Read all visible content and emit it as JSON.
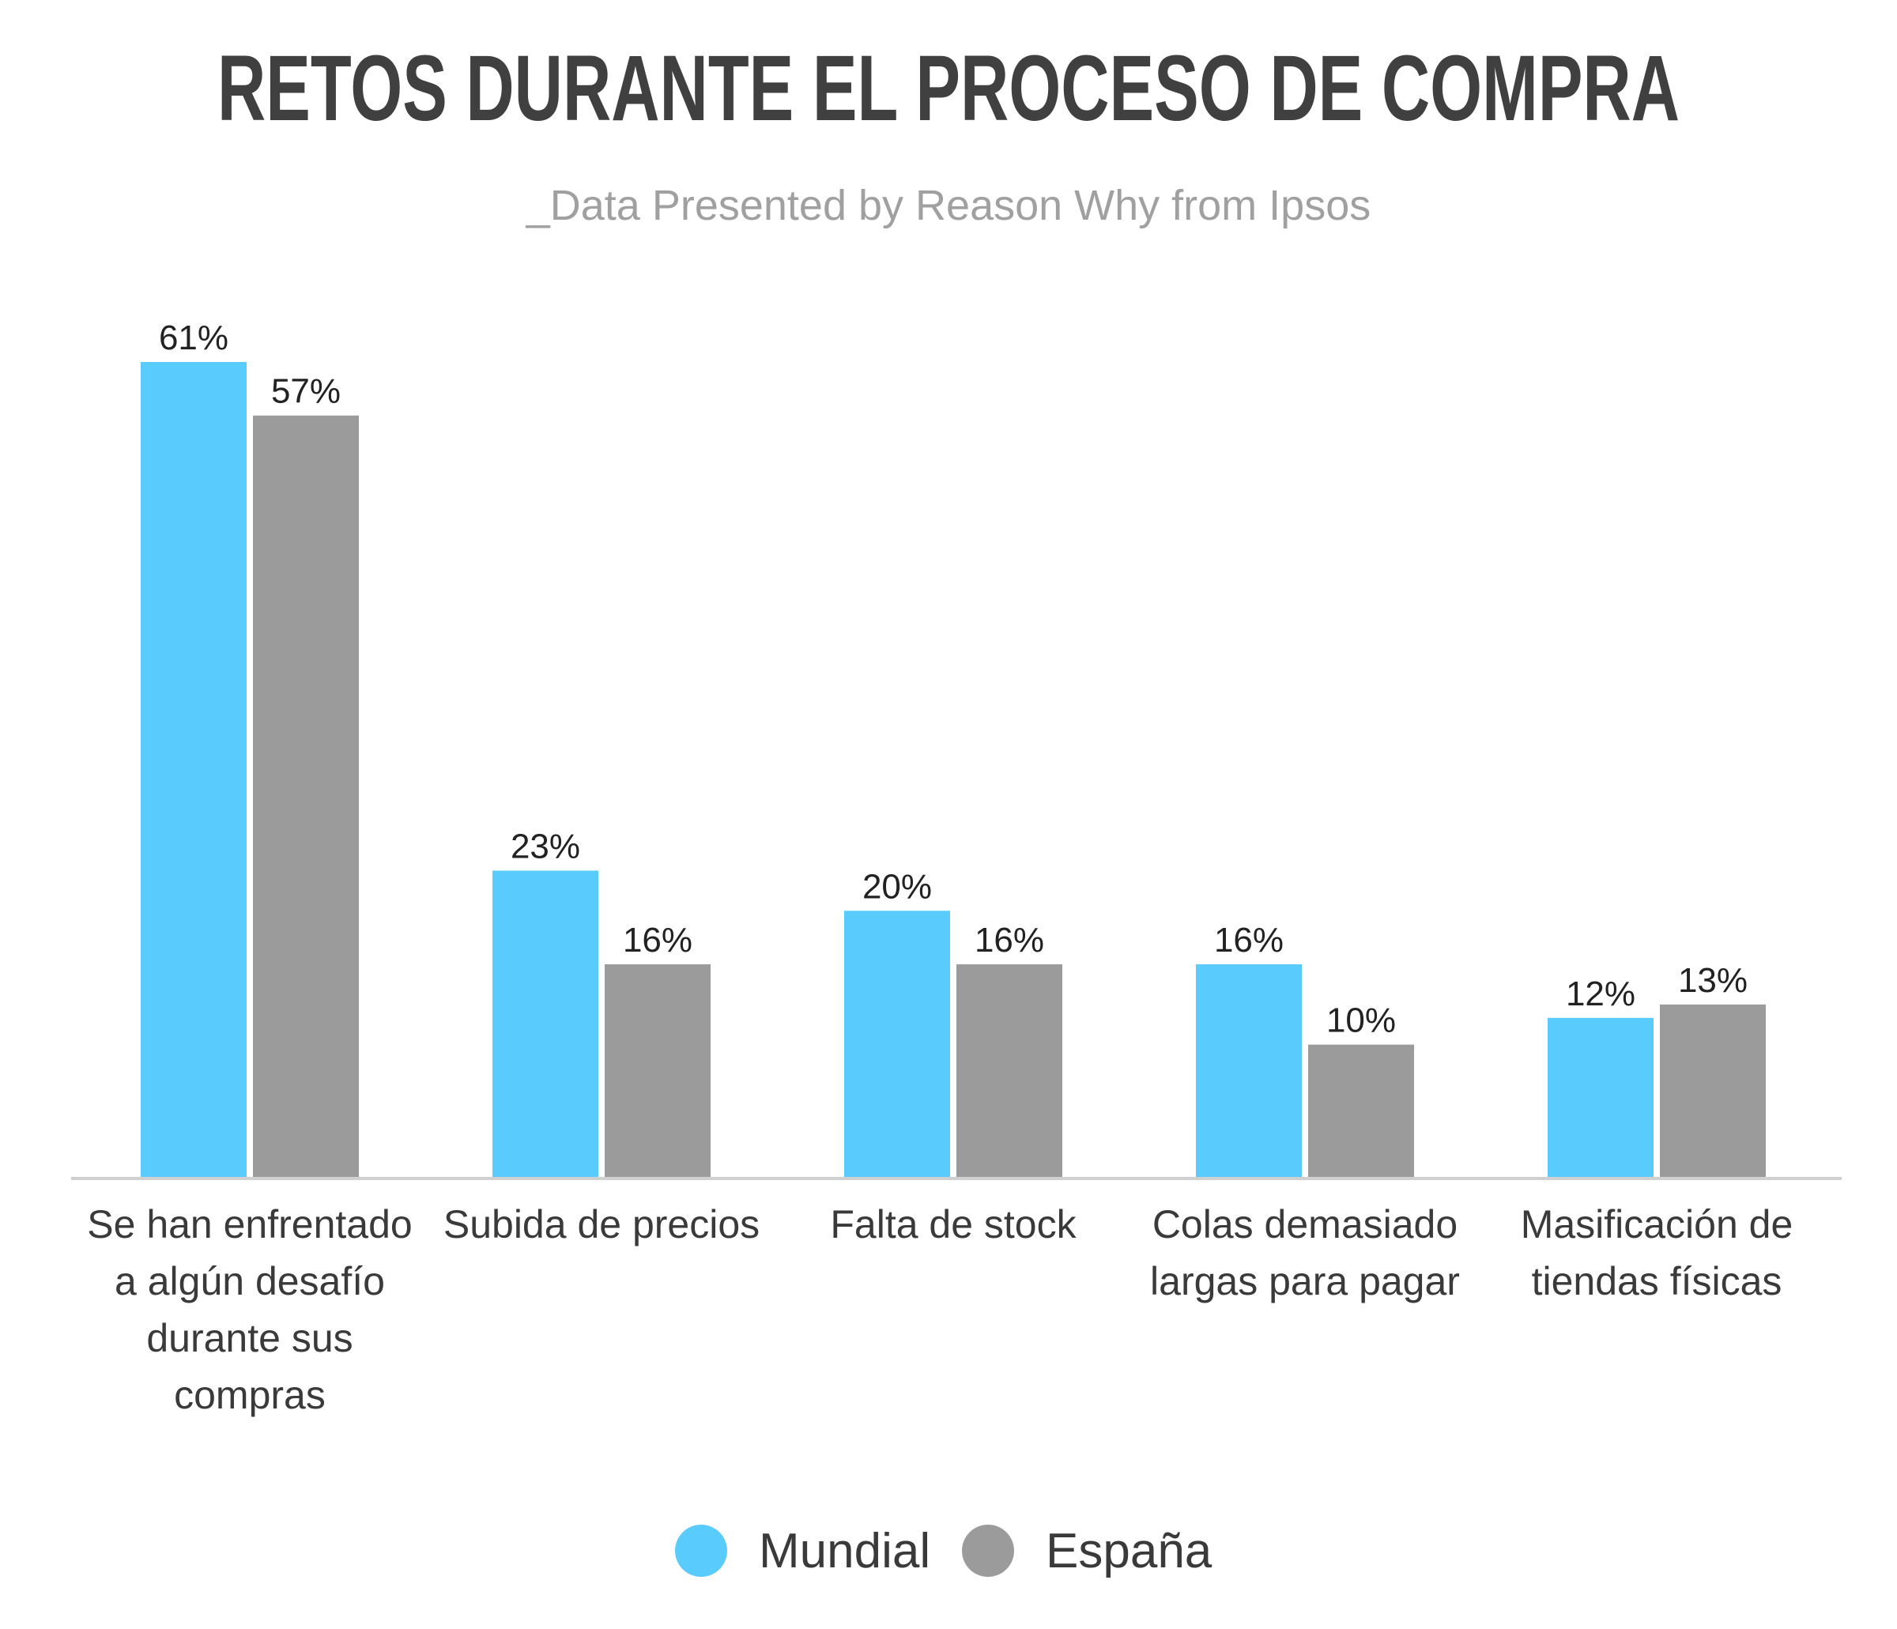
{
  "colors": {
    "mundial": "#5acbfd",
    "espana": "#9b9b9b",
    "title": "#404040",
    "subtitle": "#a0a0a0",
    "text": "#3a3a3a",
    "axis": "#d0d0d0"
  },
  "chart_data": {
    "type": "bar",
    "title": "RETOS DURANTE EL PROCESO DE COMPRA",
    "subtitle": "_Data Presented by Reason Why from Ipsos",
    "categories": [
      [
        "Se han enfrentado",
        "a algún desafío",
        "durante sus",
        "compras"
      ],
      [
        "Subida de precios"
      ],
      [
        "Falta de stock"
      ],
      [
        "Colas demasiado",
        "largas para pagar"
      ],
      [
        "Masificación de",
        "tiendas físicas"
      ]
    ],
    "series": [
      {
        "name": "Mundial",
        "values": [
          61,
          23,
          20,
          16,
          12
        ],
        "labels": [
          "61%",
          "23%",
          "20%",
          "16%",
          "12%"
        ]
      },
      {
        "name": "España",
        "values": [
          57,
          16,
          16,
          10,
          13
        ],
        "labels": [
          "57%",
          "16%",
          "16%",
          "10%",
          "13%"
        ]
      }
    ],
    "ylim": [
      0,
      61
    ],
    "grid": false,
    "legend_position": "bottom-center"
  }
}
